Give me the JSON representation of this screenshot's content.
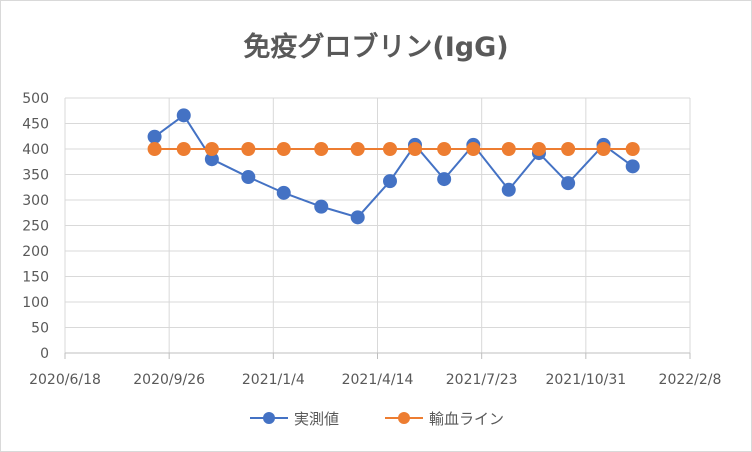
{
  "chart_data": {
    "type": "line",
    "title": "免疫グロブリン(IgG)",
    "xlabel": "",
    "ylabel": "",
    "ylim": [
      0,
      500
    ],
    "yticks": [
      0,
      50,
      100,
      150,
      200,
      250,
      300,
      350,
      400,
      450,
      500
    ],
    "xlim": [
      "2020/6/18",
      "2022/2/8"
    ],
    "xticks": [
      "2020/6/18",
      "2020/9/26",
      "2021/1/4",
      "2021/4/14",
      "2021/7/23",
      "2021/10/31",
      "2022/2/8"
    ],
    "grid": true,
    "legend_position": "bottom",
    "x": [
      "2020/9/12",
      "2020/10/10",
      "2020/11/6",
      "2020/12/11",
      "2021/1/14",
      "2021/2/19",
      "2021/3/26",
      "2021/4/26",
      "2021/5/20",
      "2021/6/17",
      "2021/7/15",
      "2021/8/18",
      "2021/9/16",
      "2021/10/14",
      "2021/11/17",
      "2021/12/15"
    ],
    "series": [
      {
        "name": "実測値",
        "color": "#4472c4",
        "values": [
          424,
          466,
          380,
          345,
          314,
          287,
          266,
          337,
          408,
          341,
          408,
          320,
          392,
          333,
          408,
          366
        ]
      },
      {
        "name": "輸血ライン",
        "color": "#ed7d31",
        "values": [
          400,
          400,
          400,
          400,
          400,
          400,
          400,
          400,
          400,
          400,
          400,
          400,
          400,
          400,
          400,
          400
        ]
      }
    ]
  }
}
